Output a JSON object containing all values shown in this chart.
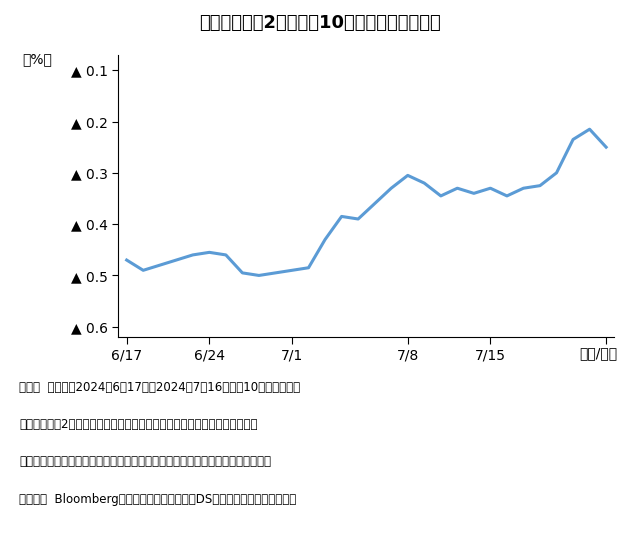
{
  "title_text": "【図表３：米2年国債と10年国債の利回り差】",
  "ylabel_unit": "（%）",
  "xlabel_unit": "（月/日）",
  "line_color": "#5b9bd5",
  "line_width": 2.2,
  "yticks": [
    -0.1,
    -0.2,
    -0.3,
    -0.4,
    -0.5,
    -0.6
  ],
  "ytick_labels": [
    "▲ 0.1",
    "▲ 0.2",
    "▲ 0.3",
    "▲ 0.4",
    "▲ 0.5",
    "▲ 0.6"
  ],
  "ylim": [
    -0.62,
    -0.07
  ],
  "x_values": [
    0,
    1,
    2,
    3,
    4,
    5,
    6,
    7,
    8,
    9,
    10,
    11,
    12,
    13,
    14,
    15,
    16,
    17,
    18,
    19,
    20,
    21,
    22,
    23,
    24,
    25,
    26,
    27,
    28,
    29
  ],
  "y_values": [
    -0.47,
    -0.49,
    -0.48,
    -0.47,
    -0.46,
    -0.455,
    -0.46,
    -0.495,
    -0.5,
    -0.495,
    -0.49,
    -0.485,
    -0.43,
    -0.385,
    -0.39,
    -0.36,
    -0.33,
    -0.305,
    -0.32,
    -0.345,
    -0.33,
    -0.34,
    -0.33,
    -0.345,
    -0.33,
    -0.325,
    -0.3,
    -0.235,
    -0.215,
    -0.25
  ],
  "xtick_positions": [
    0,
    5,
    10,
    17,
    22,
    29
  ],
  "xtick_labels": [
    "6/17",
    "6/24",
    "7/1",
    "7/8",
    "7/15",
    ""
  ],
  "note_line1": "（注）  データは2024年6月17日～2024年7月16日。米10年国債利回り",
  "note_line2": "　　　から米2年国債利回りを差し引いた長短金利差の推移。現在は長期債",
  "note_line3": "　　　の利回りが短期債の利回りを下回る「逆イールド」のため値はマイナス。",
  "note_line4": "（出所）  Bloombergのデータを基に三井住友DSアセットマネジメント作成",
  "background_color": "#ffffff"
}
